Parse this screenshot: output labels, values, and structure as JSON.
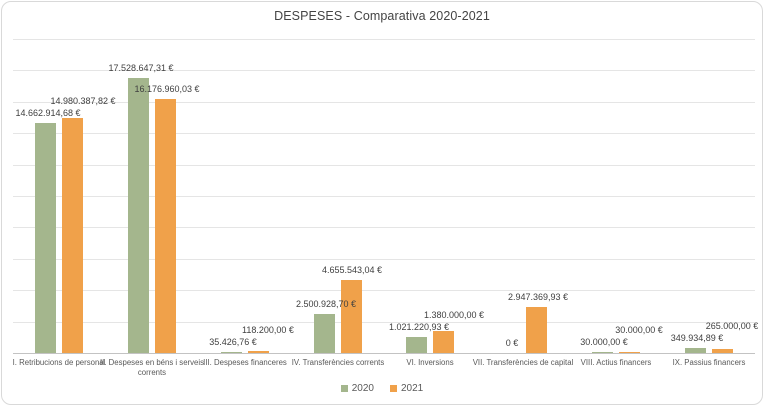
{
  "chart_data": {
    "type": "bar",
    "title": "DESPESES - Comparativa 2020-2021",
    "categories": [
      "I. Retribucions de personal",
      "II. Despeses en béns i serveis corrents",
      "III. Despeses financeres",
      "IV. Transferències corrents",
      "VI. Inversions",
      "VII. Transferències de capital",
      "VIII. Actius financers",
      "IX. Passius financers"
    ],
    "series": [
      {
        "name": "2020",
        "color": "#a4b68d",
        "values": [
          14662914.68,
          17528647.31,
          35426.76,
          2500928.7,
          1021220.93,
          0,
          30000.0,
          349934.89
        ],
        "labels": [
          "14.662.914,68 €",
          "17.528.647,31 €",
          "35.426,76 €",
          "2.500.928,70 €",
          "1.021.220,93 €",
          "0 €",
          "30.000,00 €",
          "349.934,89 €"
        ]
      },
      {
        "name": "2021",
        "color": "#f0a14a",
        "values": [
          14980387.82,
          16176960.03,
          118200.0,
          4655543.04,
          1380000.0,
          2947369.93,
          30000.0,
          265000.0
        ],
        "labels": [
          "14.980.387,82 €",
          "16.176.960,03 €",
          "118.200,00 €",
          "4.655.543,04 €",
          "1.380.000,00 €",
          "2.947.369,93 €",
          "30.000,00 €",
          "265.000,00 €"
        ]
      }
    ],
    "xlabel": "",
    "ylabel": "",
    "ylim": [
      0,
      20000000
    ],
    "grid_step": 2000000,
    "grid": true,
    "legend_position": "bottom"
  }
}
